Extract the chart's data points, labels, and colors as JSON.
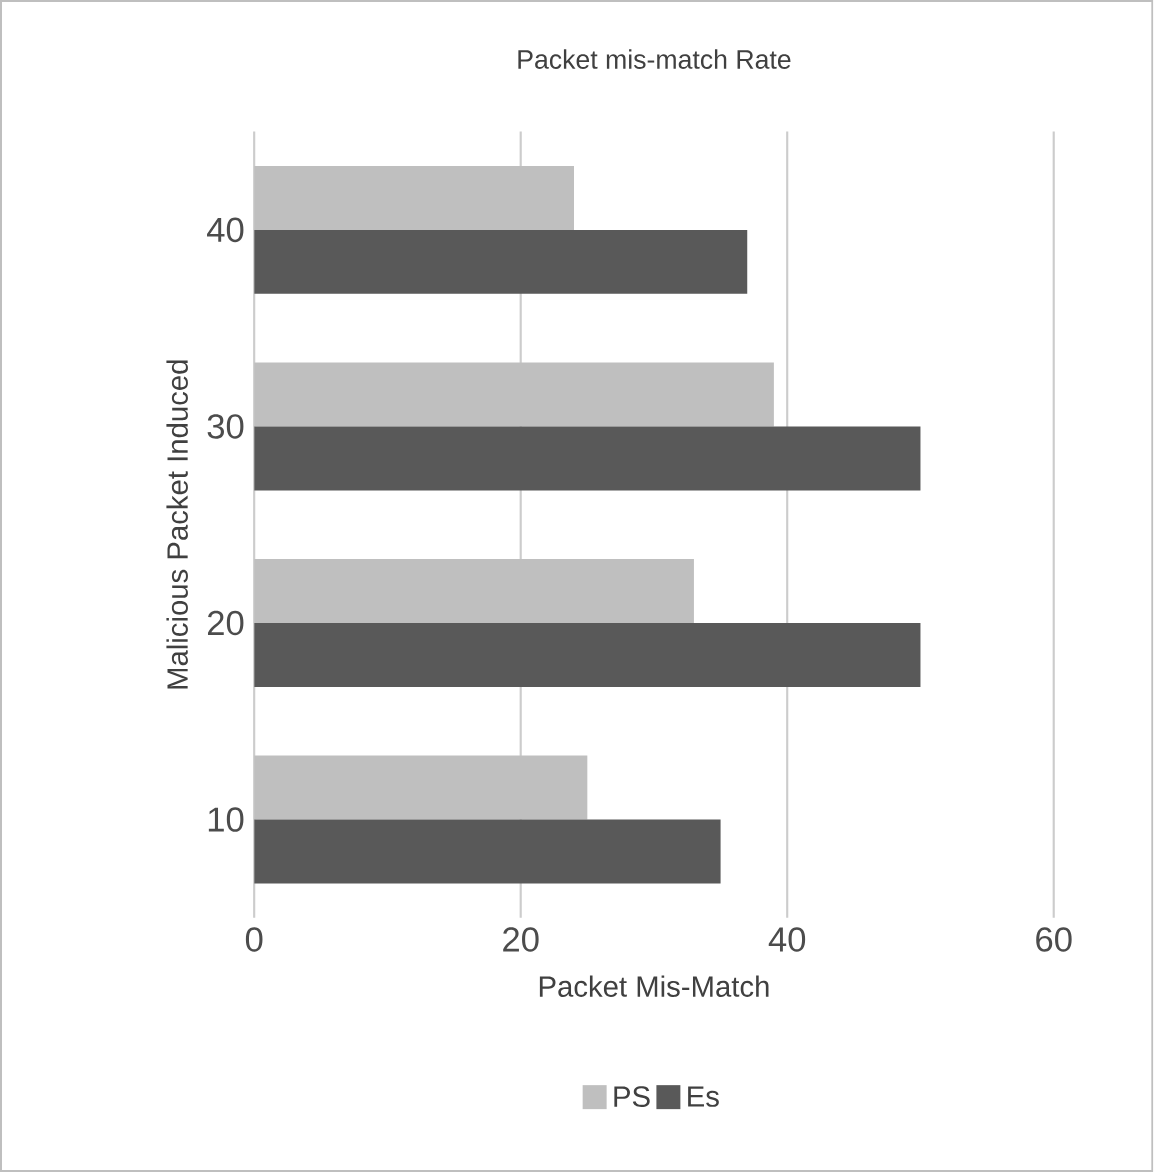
{
  "chart_data": {
    "type": "bar",
    "orientation": "horizontal",
    "title": "Packet mis-match Rate",
    "xlabel": "Packet Mis-Match",
    "ylabel": "Malicious Packet Induced",
    "categories": [
      "40",
      "30",
      "20",
      "10"
    ],
    "series": [
      {
        "name": "PS",
        "color": "#bfbfbf",
        "values": [
          24,
          39,
          33,
          25
        ]
      },
      {
        "name": "Es",
        "color": "#595959",
        "values": [
          37,
          50,
          50,
          35
        ]
      }
    ],
    "xlim": [
      0,
      60
    ],
    "xticks": [
      0,
      20,
      40,
      60
    ],
    "grid": "x",
    "legend": "bottom"
  }
}
